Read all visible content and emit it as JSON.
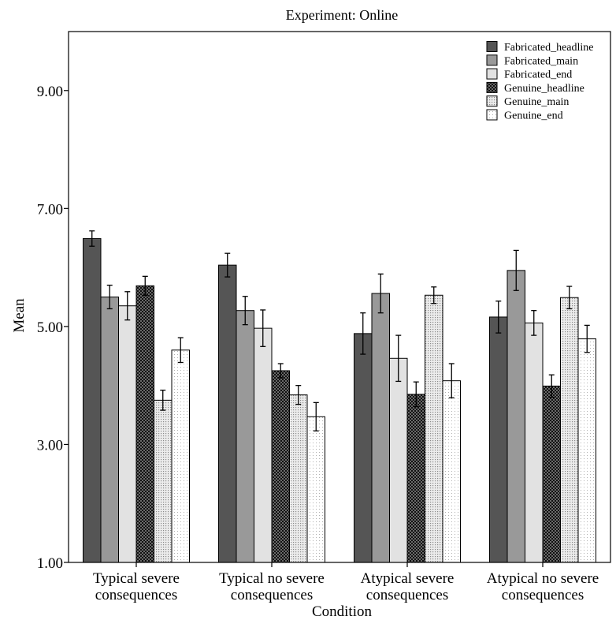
{
  "chart_data": {
    "type": "bar",
    "title": "Experiment: Online",
    "xlabel": "Condition",
    "ylabel": "Mean",
    "ylim": [
      1,
      10
    ],
    "yticks": [
      "1.00",
      "3.00",
      "5.00",
      "7.00",
      "9.00"
    ],
    "categories": [
      [
        "Typical severe",
        "consequences"
      ],
      [
        "Typical no severe",
        "consequences"
      ],
      [
        "Atypical severe",
        "consequences"
      ],
      [
        "Atypical no severe",
        "consequences"
      ]
    ],
    "legend_position": "top-right",
    "grid": false,
    "error_bars": true,
    "series": [
      {
        "name": "Fabricated_headline",
        "color": "#555555",
        "pattern": "solid",
        "values": [
          6.49,
          6.04,
          4.88,
          5.16
        ],
        "errors": [
          0.13,
          0.2,
          0.35,
          0.27
        ]
      },
      {
        "name": "Fabricated_main",
        "color": "#999999",
        "pattern": "solid",
        "values": [
          5.5,
          5.27,
          5.56,
          5.95
        ],
        "errors": [
          0.2,
          0.24,
          0.33,
          0.34
        ]
      },
      {
        "name": "Fabricated_end",
        "color": "#e2e2e2",
        "pattern": "solid",
        "values": [
          5.35,
          4.97,
          4.46,
          5.06
        ],
        "errors": [
          0.24,
          0.31,
          0.39,
          0.21
        ]
      },
      {
        "name": "Genuine_headline",
        "color": "#111111",
        "pattern": "checker",
        "values": [
          5.69,
          4.25,
          3.85,
          3.99
        ],
        "errors": [
          0.16,
          0.12,
          0.21,
          0.19
        ]
      },
      {
        "name": "Genuine_main",
        "color": "#d4d4d4",
        "pattern": "dots",
        "values": [
          3.75,
          3.84,
          5.53,
          5.49
        ],
        "errors": [
          0.17,
          0.16,
          0.14,
          0.19
        ]
      },
      {
        "name": "Genuine_end",
        "color": "#f2f2f2",
        "pattern": "sparse-dots",
        "values": [
          4.6,
          3.47,
          4.08,
          4.79
        ],
        "errors": [
          0.21,
          0.24,
          0.29,
          0.23
        ]
      }
    ]
  }
}
